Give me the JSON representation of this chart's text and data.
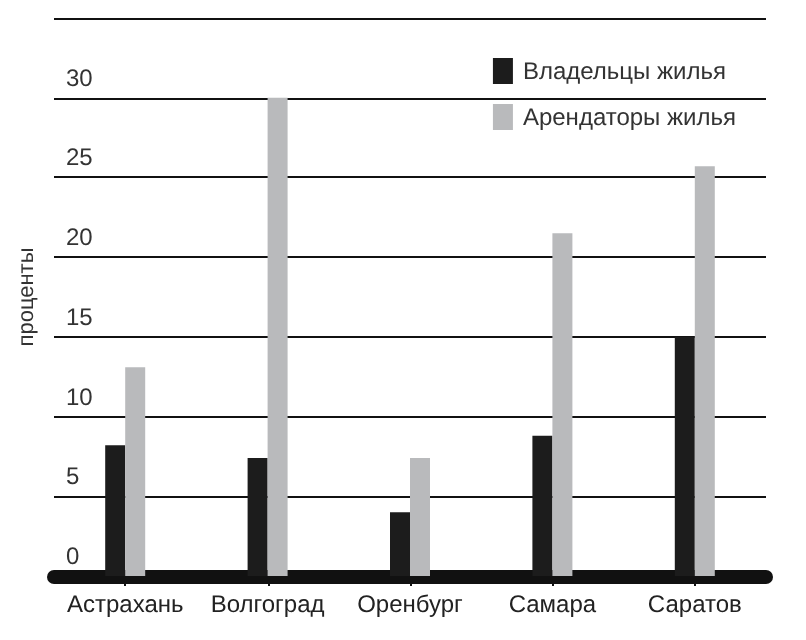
{
  "chart_data": {
    "type": "bar",
    "ylabel": "проценты",
    "categories": [
      "Астрахань",
      "Волгоград",
      "Оренбург",
      "Самара",
      "Саратов"
    ],
    "series": [
      {
        "name": "Владельцы жилья",
        "color": "#1c1c1c",
        "values": [
          8.2,
          7.4,
          4.0,
          8.8,
          15.0
        ]
      },
      {
        "name": "Арендаторы жилья",
        "color": "#b9babc",
        "values": [
          13.1,
          30.0,
          7.4,
          21.5,
          25.7
        ]
      }
    ],
    "ylim": [
      0,
      35
    ],
    "yticks": [
      0,
      5,
      10,
      15,
      20,
      25,
      30,
      {
        "value": 35,
        "label": null
      }
    ],
    "grid": "y",
    "legend": "top right"
  }
}
